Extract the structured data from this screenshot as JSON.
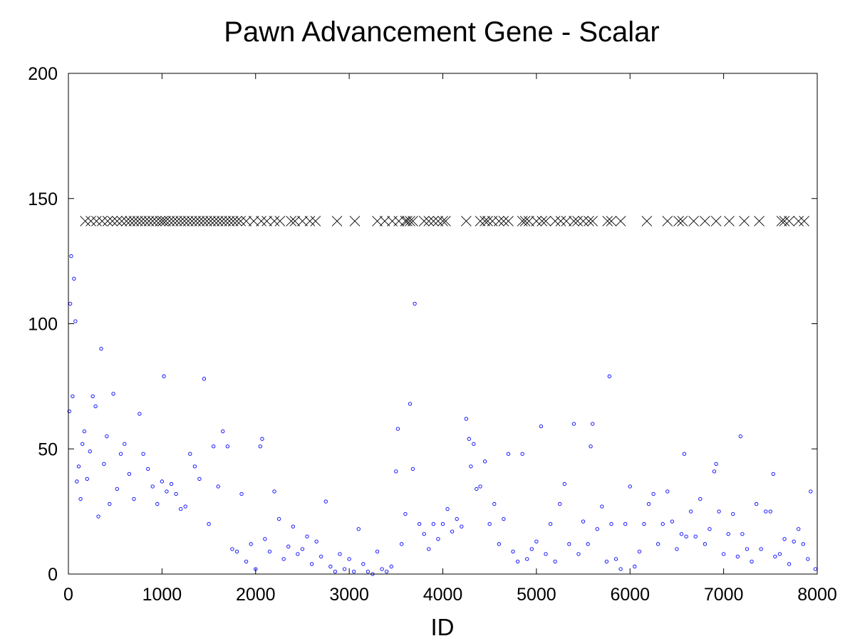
{
  "chart_data": {
    "type": "scatter",
    "title": "Pawn Advancement Gene - Scalar",
    "xlabel": "ID",
    "ylabel": "",
    "xlim": [
      0,
      8000
    ],
    "ylim": [
      0,
      200
    ],
    "xticks": [
      "0",
      "1000",
      "2000",
      "3000",
      "4000",
      "5000",
      "6000",
      "7000",
      "8000"
    ],
    "yticks": [
      "0",
      "50",
      "100",
      "150",
      "200"
    ],
    "grid": false,
    "legend": "none",
    "series": [
      {
        "marker": "circle",
        "color": "#0000ff",
        "points": [
          [
            10,
            65
          ],
          [
            20,
            108
          ],
          [
            30,
            127
          ],
          [
            45,
            71
          ],
          [
            60,
            118
          ],
          [
            75,
            101
          ],
          [
            90,
            37
          ],
          [
            110,
            43
          ],
          [
            130,
            30
          ],
          [
            150,
            52
          ],
          [
            170,
            57
          ],
          [
            200,
            38
          ],
          [
            230,
            49
          ],
          [
            260,
            71
          ],
          [
            290,
            67
          ],
          [
            320,
            23
          ],
          [
            350,
            90
          ],
          [
            380,
            44
          ],
          [
            410,
            55
          ],
          [
            440,
            28
          ],
          [
            480,
            72
          ],
          [
            520,
            34
          ],
          [
            560,
            48
          ],
          [
            600,
            52
          ],
          [
            650,
            40
          ],
          [
            700,
            30
          ],
          [
            760,
            64
          ],
          [
            800,
            48
          ],
          [
            850,
            42
          ],
          [
            900,
            35
          ],
          [
            950,
            28
          ],
          [
            1000,
            37
          ],
          [
            1020,
            79
          ],
          [
            1050,
            33
          ],
          [
            1100,
            36
          ],
          [
            1150,
            32
          ],
          [
            1200,
            26
          ],
          [
            1250,
            27
          ],
          [
            1300,
            48
          ],
          [
            1350,
            43
          ],
          [
            1400,
            38
          ],
          [
            1450,
            78
          ],
          [
            1500,
            20
          ],
          [
            1550,
            51
          ],
          [
            1600,
            35
          ],
          [
            1650,
            57
          ],
          [
            1700,
            51
          ],
          [
            1750,
            10
          ],
          [
            1800,
            9
          ],
          [
            1850,
            32
          ],
          [
            1900,
            5
          ],
          [
            1950,
            12
          ],
          [
            2000,
            2
          ],
          [
            2050,
            51
          ],
          [
            2070,
            54
          ],
          [
            2100,
            14
          ],
          [
            2150,
            9
          ],
          [
            2200,
            33
          ],
          [
            2250,
            22
          ],
          [
            2300,
            6
          ],
          [
            2350,
            11
          ],
          [
            2400,
            19
          ],
          [
            2450,
            8
          ],
          [
            2500,
            10
          ],
          [
            2550,
            15
          ],
          [
            2600,
            4
          ],
          [
            2650,
            13
          ],
          [
            2700,
            7
          ],
          [
            2750,
            29
          ],
          [
            2800,
            3
          ],
          [
            2850,
            1
          ],
          [
            2900,
            8
          ],
          [
            2950,
            2
          ],
          [
            3000,
            6
          ],
          [
            3050,
            1
          ],
          [
            3100,
            18
          ],
          [
            3150,
            4
          ],
          [
            3200,
            1
          ],
          [
            3250,
            0
          ],
          [
            3300,
            9
          ],
          [
            3350,
            2
          ],
          [
            3400,
            1
          ],
          [
            3450,
            3
          ],
          [
            3500,
            41
          ],
          [
            3520,
            58
          ],
          [
            3560,
            12
          ],
          [
            3600,
            24
          ],
          [
            3650,
            68
          ],
          [
            3680,
            42
          ],
          [
            3700,
            108
          ],
          [
            3750,
            20
          ],
          [
            3800,
            16
          ],
          [
            3850,
            10
          ],
          [
            3900,
            20
          ],
          [
            3950,
            14
          ],
          [
            4000,
            20
          ],
          [
            4050,
            26
          ],
          [
            4100,
            17
          ],
          [
            4150,
            22
          ],
          [
            4200,
            19
          ],
          [
            4250,
            62
          ],
          [
            4280,
            54
          ],
          [
            4300,
            43
          ],
          [
            4330,
            52
          ],
          [
            4360,
            34
          ],
          [
            4400,
            35
          ],
          [
            4450,
            45
          ],
          [
            4500,
            20
          ],
          [
            4550,
            28
          ],
          [
            4600,
            12
          ],
          [
            4650,
            22
          ],
          [
            4700,
            48
          ],
          [
            4750,
            9
          ],
          [
            4800,
            5
          ],
          [
            4850,
            48
          ],
          [
            4900,
            6
          ],
          [
            4950,
            10
          ],
          [
            5000,
            13
          ],
          [
            5050,
            59
          ],
          [
            5100,
            8
          ],
          [
            5150,
            20
          ],
          [
            5200,
            5
          ],
          [
            5250,
            28
          ],
          [
            5300,
            36
          ],
          [
            5350,
            12
          ],
          [
            5400,
            60
          ],
          [
            5450,
            8
          ],
          [
            5500,
            21
          ],
          [
            5550,
            12
          ],
          [
            5580,
            51
          ],
          [
            5600,
            60
          ],
          [
            5650,
            18
          ],
          [
            5700,
            27
          ],
          [
            5750,
            5
          ],
          [
            5780,
            79
          ],
          [
            5800,
            20
          ],
          [
            5850,
            6
          ],
          [
            5900,
            2
          ],
          [
            5950,
            20
          ],
          [
            6000,
            35
          ],
          [
            6050,
            3
          ],
          [
            6100,
            9
          ],
          [
            6150,
            20
          ],
          [
            6200,
            28
          ],
          [
            6250,
            32
          ],
          [
            6300,
            12
          ],
          [
            6350,
            20
          ],
          [
            6400,
            33
          ],
          [
            6450,
            21
          ],
          [
            6500,
            10
          ],
          [
            6550,
            16
          ],
          [
            6580,
            48
          ],
          [
            6600,
            15
          ],
          [
            6650,
            25
          ],
          [
            6700,
            15
          ],
          [
            6750,
            30
          ],
          [
            6800,
            12
          ],
          [
            6850,
            18
          ],
          [
            6900,
            41
          ],
          [
            6920,
            44
          ],
          [
            6950,
            25
          ],
          [
            7000,
            8
          ],
          [
            7050,
            16
          ],
          [
            7100,
            24
          ],
          [
            7150,
            7
          ],
          [
            7180,
            55
          ],
          [
            7200,
            16
          ],
          [
            7250,
            10
          ],
          [
            7300,
            5
          ],
          [
            7350,
            28
          ],
          [
            7400,
            10
          ],
          [
            7450,
            25
          ],
          [
            7500,
            25
          ],
          [
            7530,
            40
          ],
          [
            7550,
            7
          ],
          [
            7600,
            8
          ],
          [
            7650,
            14
          ],
          [
            7700,
            4
          ],
          [
            7750,
            13
          ],
          [
            7800,
            18
          ],
          [
            7850,
            12
          ],
          [
            7900,
            6
          ],
          [
            7930,
            33
          ],
          [
            7980,
            2
          ]
        ]
      },
      {
        "marker": "x",
        "color": "#000000",
        "y": 141,
        "x": [
          180,
          240,
          300,
          360,
          420,
          470,
          520,
          570,
          620,
          660,
          700,
          740,
          780,
          820,
          860,
          900,
          940,
          980,
          1010,
          1040,
          1080,
          1120,
          1160,
          1200,
          1240,
          1280,
          1320,
          1360,
          1400,
          1440,
          1480,
          1520,
          1560,
          1600,
          1640,
          1680,
          1720,
          1760,
          1800,
          1840,
          1900,
          1980,
          2060,
          2120,
          2200,
          2260,
          2380,
          2420,
          2500,
          2580,
          2640,
          2870,
          3060,
          3300,
          3380,
          3460,
          3530,
          3600,
          3620,
          3650,
          3680,
          3800,
          3850,
          3900,
          3950,
          4000,
          4030,
          4250,
          4400,
          4450,
          4480,
          4530,
          4600,
          4650,
          4700,
          4850,
          4880,
          4920,
          5000,
          5060,
          5100,
          5200,
          5260,
          5320,
          5400,
          5440,
          5500,
          5560,
          5600,
          5760,
          5800,
          5900,
          6180,
          6400,
          6520,
          6560,
          6680,
          6800,
          6920,
          7060,
          7220,
          7380,
          7620,
          7650,
          7700,
          7800,
          7860
        ]
      }
    ]
  }
}
